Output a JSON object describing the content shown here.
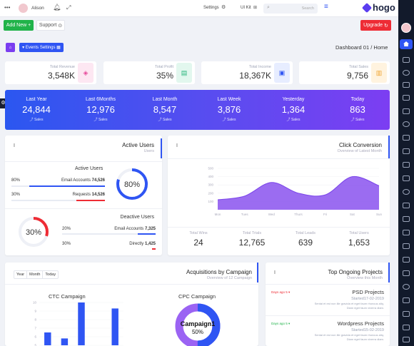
{
  "topbar": {
    "user_name": "Alison",
    "settings_label": "Settings",
    "uikit_label": "UI Kit",
    "search_placeholder": "Search",
    "logo": "hogo"
  },
  "actions": {
    "add_new": "Add New",
    "support": "Support",
    "upgrade": "Upgrade"
  },
  "toolbar": {
    "events_settings": "Events Settings",
    "breadcrumb_page": "Dashboard 01",
    "breadcrumb_sep": "/",
    "breadcrumb_home": "Home"
  },
  "kpis": [
    {
      "label": "Total Revenue",
      "value": "3,548K"
    },
    {
      "label": "Total Profit",
      "value": "35%"
    },
    {
      "label": "Total Income",
      "value": "18,367K"
    },
    {
      "label": "Total Sales",
      "value": "9,756"
    }
  ],
  "periods": [
    {
      "label": "Last Year",
      "value": "24,844",
      "sub": "Sales"
    },
    {
      "label": "Last 6Months",
      "value": "12,976",
      "sub": "Sales"
    },
    {
      "label": "Last Month",
      "value": "8,547",
      "sub": "Sales"
    },
    {
      "label": "Last Week",
      "value": "3,876",
      "sub": "Sales"
    },
    {
      "label": "Yesterday",
      "value": "1,364",
      "sub": "Sales"
    },
    {
      "label": "Today",
      "value": "863",
      "sub": "Sales"
    }
  ],
  "active_users": {
    "title": "Active Users",
    "subtitle": "Users",
    "section1": "Active Users",
    "row1_pct": "80%",
    "row1_label": "Email Accounts",
    "row1_value": "74,526",
    "row2_pct": "30%",
    "row2_label": "Requests",
    "row2_value": "14,526",
    "gauge1": "80%",
    "section2": "Deactive Users",
    "row3_pct": "20%",
    "row3_label": "Email Accounts",
    "row3_value": "7,325",
    "row4_pct": "30%",
    "row4_label": "Directly",
    "row4_value": "1,425",
    "gauge2": "30%",
    "gauge1_fraction": 0.8,
    "gauge2_fraction": 0.3
  },
  "click_conversion": {
    "title": "Click Conversion",
    "subtitle": "Overview of Latest Month",
    "stats": [
      {
        "label": "Total Wins",
        "value": "24"
      },
      {
        "label": "Total Trials",
        "value": "12,765"
      },
      {
        "label": "Total Leads",
        "value": "639"
      },
      {
        "label": "Total Users",
        "value": "1,653"
      }
    ]
  },
  "acquisitions": {
    "title": "Acquisitions by Campaign",
    "subtitle": "Overview of 12 Campaign",
    "tabs": [
      "Year",
      "Month",
      "Today"
    ],
    "ctc_title": "CTC Campaign",
    "cpc_title": "CPC Campaign",
    "donut_label": "Campaign1",
    "donut_value": "50%"
  },
  "projects": {
    "title": "Top Ongoing Projects",
    "subtitle": "Overview this Month",
    "items": [
      {
        "tag": "Days ago 5",
        "name": "PSD Projects",
        "started": "Started17-02-2019",
        "desc1": "Sentai et est non ille gravida et eget faum rhoncus aliq.",
        "desc2": "Diam eget faum viverra diam."
      },
      {
        "tag": "Days ago 5",
        "name": "Wordpress Projects",
        "started": "Started15-02-2019",
        "desc1": "Sentai et est non ille gravida et eget faum rhoncus aliq.",
        "desc2": "Diam eget faum viverra diam."
      }
    ]
  },
  "chart_data": [
    {
      "type": "area",
      "title": "Click Conversion",
      "x": [
        "Mon",
        "Tues",
        "Wed",
        "Thurs",
        "Fri",
        "Sat",
        "Sun"
      ],
      "yticks": [
        "100",
        "200",
        "300",
        "400",
        "500"
      ],
      "series": [
        {
          "values": [
            120,
            165,
            330,
            200,
            180,
            400,
            290
          ]
        }
      ],
      "ylim": [
        0,
        500
      ],
      "color": "#8a52ee"
    },
    {
      "type": "bar",
      "title": "CTC Campaign",
      "yticks": [
        "5",
        "6",
        "7",
        "8",
        "9",
        "10"
      ],
      "values": [
        6.5,
        5.8,
        10.0,
        5.0,
        9.3
      ],
      "ylim": [
        5,
        10
      ],
      "color": "#2f55f3"
    },
    {
      "type": "pie",
      "title": "CPC Campaign",
      "series": [
        {
          "name": "Campaign1",
          "values": [
            50,
            50
          ]
        }
      ],
      "colors": [
        "#2f55f3",
        "#9b63f3"
      ]
    }
  ]
}
